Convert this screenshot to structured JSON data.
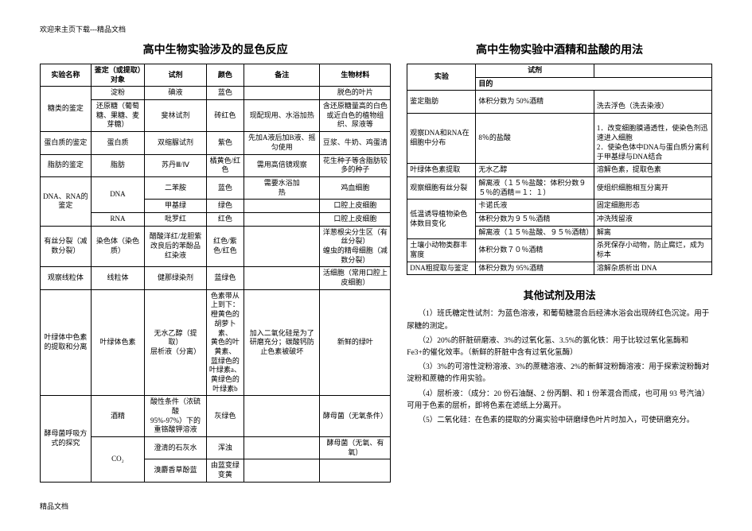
{
  "header": "欢迎来主页下载---精品文档",
  "footer": "精品文档",
  "left": {
    "title": "高中生物实验涉及的显色反应",
    "headers": [
      "实验名称",
      "鉴定（或提取）对象",
      "试剂",
      "颜色",
      "备注",
      "生物材料"
    ],
    "rows": [
      {
        "c": [
          "糖类的鉴定",
          "淀粉",
          "碘液",
          "蓝色",
          "",
          "脱色的叶片"
        ],
        "span": {
          "0": 2
        }
      },
      {
        "c": [
          "",
          "还原糖（葡萄糖、果糖、麦芽糖）",
          "斐林试剂",
          "砖红色",
          "现配现用、水浴加热",
          "含还原糖量高的白色或近白色的植物组织、尿液等"
        ]
      },
      {
        "c": [
          "蛋白质的鉴定",
          "蛋白质",
          "双缩脲试剂",
          "紫色",
          "先加A液后加B液、摇匀使用",
          "豆浆、牛奶、鸡蛋清"
        ]
      },
      {
        "c": [
          "脂肪的鉴定",
          "脂肪",
          "苏丹Ⅲ/Ⅳ",
          "橘黄色/红色",
          "需用高倍镜观察",
          "花生种子等含脂肪较多的种子"
        ]
      },
      {
        "c": [
          "DNA、RNA的鉴定",
          "DNA",
          "二苯胺",
          "蓝色",
          "需要水浴加<br>热",
          "鸡血细胞"
        ],
        "span": {
          "0": 3,
          "1": 2
        }
      },
      {
        "c": [
          "",
          "",
          "甲基绿",
          "绿色",
          "",
          "口腔上皮细胞"
        ]
      },
      {
        "c": [
          "",
          "RNA",
          "吡罗红",
          "红色",
          "",
          "口腔上皮细胞"
        ]
      },
      {
        "c": [
          "有丝分裂（减数分裂）",
          "染色体（染色质）",
          "醋酸洋红/龙胆紫<br>改良后的苯酚品红染液",
          "红色/紫色/红色",
          "",
          "洋葱根尖分生区（有丝分裂）<br>蝗虫的精母细胞（减数分裂）"
        ]
      },
      {
        "c": [
          "观察线粒体",
          "线粒体",
          "健那绿染剂",
          "蓝绿色",
          "",
          "活细胞（常用口腔上皮细胞）"
        ]
      },
      {
        "c": [
          "叶绿体中色素的提取和分离",
          "叶绿体色素",
          "无水乙醇（提取）<br>层析液（分离）",
          "色素带从上到下：<br>橙黄色的胡萝卜素、<br>黄色的叶黄素、<br>蓝绿色的叶绿素a、<br>黄绿色的叶绿素b",
          "加入二氧化硅是为了研磨充分；碳酸钙防止色素被破坏",
          "新鲜的绿叶"
        ]
      },
      {
        "c": [
          "酵母菌呼吸方式的探究",
          "酒精",
          "酸性条件（浓硫酸<br>95%-97%）下的重铬酸钾溶液",
          "灰绿色",
          "",
          "酵母菌（无氧条件）"
        ],
        "span": {
          "0": 3
        }
      },
      {
        "c": [
          "",
          "CO₂",
          "澄清的石灰水",
          "浑浊",
          "",
          "酵母菌（无氧、有氧）"
        ],
        "span": {
          "1": 2
        }
      },
      {
        "c": [
          "",
          "",
          "溴麝香草酚蓝",
          "由蓝变绿变黄",
          "",
          ""
        ]
      }
    ]
  },
  "right": {
    "title": "高中生物实验中酒精和盐酸的用法",
    "headers": [
      "实验",
      "试剂",
      "目的"
    ],
    "rows": [
      {
        "c": [
          "鉴定脂肪",
          "体积分数为 50%酒精",
          "<br>洗去浮色（洗去染液）"
        ],
        "span": {}
      },
      {
        "c": [
          "观察DNA和RNA在细胞中分布",
          "8％的盐酸",
          "<br>1．改变细胞膜通透性，使染色剂迅速进入细胞<br>2．使染色体中DNA与蛋白质分离利于甲基绿与DNA结合"
        ]
      },
      {
        "c": [
          "叶绿体色素提取",
          "无水乙醇",
          "溶解色素，提取色素"
        ]
      },
      {
        "c": [
          "观察细胞有丝分裂",
          "解离液（１５％盐酸：体积分数９５％的酒精＝１：１）",
          "使组织细胞相互分离开"
        ]
      },
      {
        "c": [
          "低温诱导植物染色体数目变化",
          "卡诺氏液",
          "固定细胞形态"
        ]
      },
      {
        "c": [
          "",
          "体积分数为９５％酒精",
          "冲洗残留液"
        ]
      },
      {
        "c": [
          "",
          "解离液（１５％盐酸、９５％酒精）",
          "解离"
        ]
      },
      {
        "c": [
          "土壤小动物类群丰富度",
          "体积分数７０％酒精",
          "杀死保存小动物，防止腐烂，成为标本"
        ]
      },
      {
        "c": [
          "DNA粗提取与鉴定",
          "体积分数为 95%酒精",
          "溶解杂质析出 DNA"
        ]
      }
    ],
    "spans": {
      "4": 3
    }
  },
  "other": {
    "title": "其他试剂及用法",
    "paras": [
      "（1）班氏糖定性试剂：为蓝色溶液，和葡萄糖混合后经沸水浴会出现砖红色沉淀。用于尿糖的测定。",
      "（2）20%的肝脏研磨液、3%的过氧化氢、3.5%的氯化铁：用于比较过氧化氢酶和 Fe3+的催化效率。（新鲜的肝脏中含有过氧化氢酶）",
      "（3）3%的可溶性淀粉溶液、3%的蔗糖溶液、2%的新鲜淀粉酶溶液：用于探索淀粉酶对淀粉和蔗糖的作用实验。",
      "（4）层析液：（成分：20 份石油醚、2 份丙酮、和 1 份苯混合而成，也可用 93 号汽油）可用于色素的层析，即将色素在滤纸上分离开。",
      "（5）二氧化硅：在色素的提取的分离实验中研磨绿色叶片时加入，可使研磨充分。"
    ]
  }
}
